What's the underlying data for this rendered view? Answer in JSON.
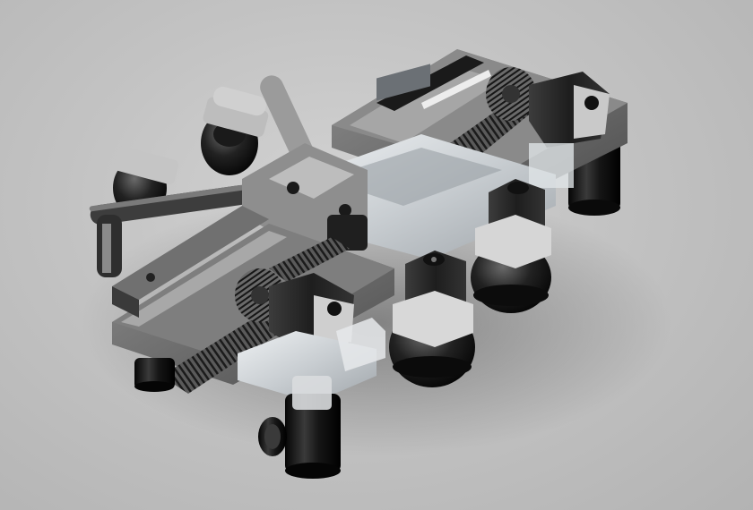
{
  "scene": {
    "subject": "robot-render",
    "colors": {
      "background": "#c4c4c4",
      "aluminum": "#9a9a9a",
      "dark_metal": "#2a2a2a",
      "black": "#111111",
      "acrylic": "#dfe3e6",
      "silver": "#cfcfcf"
    }
  }
}
